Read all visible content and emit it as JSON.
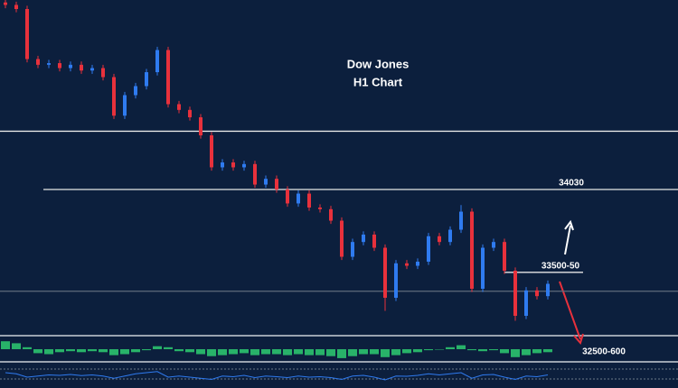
{
  "chart_data": {
    "type": "candlestick",
    "title": "Dow Jones",
    "subtitle": "H1 Chart",
    "ylim": [
      33150,
      35185
    ],
    "open": [
      35170,
      35155,
      35130,
      34825,
      34790,
      34800,
      34770,
      34790,
      34755,
      34770,
      34715,
      34480,
      34605,
      34660,
      34745,
      34880,
      34550,
      34515,
      34470,
      34360,
      34165,
      34195,
      34165,
      34185,
      34060,
      34095,
      34030,
      33945,
      34005,
      33920,
      33910,
      33840,
      33620,
      33710,
      33755,
      33675,
      33370,
      33580,
      33565,
      33590,
      33745,
      33710,
      33785,
      33895,
      33425,
      33675,
      33710,
      33535,
      33260,
      33415,
      33380
    ],
    "high": [
      35190,
      35175,
      35150,
      34845,
      34820,
      34820,
      34810,
      34810,
      34790,
      34790,
      34735,
      34625,
      34680,
      34765,
      34900,
      34900,
      34570,
      34535,
      34490,
      34380,
      34215,
      34215,
      34205,
      34205,
      34115,
      34115,
      34050,
      34025,
      34025,
      33940,
      33930,
      33860,
      33730,
      33775,
      33775,
      33695,
      33600,
      33600,
      33610,
      33765,
      33765,
      33805,
      33935,
      33915,
      33695,
      33730,
      33730,
      33555,
      33435,
      33435,
      33475
    ],
    "low": [
      35135,
      35110,
      34805,
      34770,
      34770,
      34750,
      34750,
      34735,
      34735,
      34695,
      34460,
      34460,
      34585,
      34640,
      34725,
      34530,
      34495,
      34450,
      34340,
      34145,
      34145,
      34145,
      34145,
      34040,
      34040,
      34010,
      33925,
      33925,
      33900,
      33890,
      33820,
      33600,
      33600,
      33690,
      33655,
      33290,
      33350,
      33545,
      33545,
      33570,
      33690,
      33690,
      33765,
      33405,
      33405,
      33655,
      33515,
      33230,
      33240,
      33360,
      33360
    ],
    "close": [
      35155,
      35130,
      34825,
      34790,
      34800,
      34770,
      34790,
      34755,
      34770,
      34715,
      34480,
      34605,
      34660,
      34745,
      34880,
      34550,
      34515,
      34470,
      34360,
      34165,
      34195,
      34165,
      34185,
      34060,
      34095,
      34030,
      33945,
      34005,
      33920,
      33910,
      33840,
      33620,
      33710,
      33755,
      33675,
      33370,
      33580,
      33565,
      33590,
      33745,
      33710,
      33785,
      33895,
      33425,
      33675,
      33710,
      33535,
      33260,
      33415,
      33380,
      33455
    ],
    "up_color": "#2f7bf0",
    "down_color": "#e8313c",
    "levels": [
      {
        "value": 34385
      },
      {
        "value": 34030,
        "label": "34030"
      },
      {
        "value": 33525,
        "label": "33500-50"
      },
      {
        "value": 33410
      }
    ],
    "annotation": "32500-600",
    "annotation_color": "#1e90ff",
    "macd": [
      8,
      6,
      2,
      -4,
      -5,
      -3,
      -2,
      -3,
      -2,
      -3,
      -6,
      -5,
      -3,
      -1,
      3,
      2,
      -2,
      -3,
      -5,
      -7,
      -6,
      -5,
      -4,
      -6,
      -5,
      -5,
      -6,
      -5,
      -6,
      -6,
      -7,
      -9,
      -7,
      -5,
      -5,
      -8,
      -6,
      -4,
      -3,
      -1,
      0,
      2,
      4,
      -1,
      -2,
      -1,
      -4,
      -8,
      -6,
      -4,
      -3
    ],
    "macd_lim": [
      -10,
      10
    ],
    "macd_color": "#2ecc71",
    "oscillator": [
      60,
      55,
      40,
      45,
      50,
      48,
      52,
      47,
      50,
      45,
      35,
      45,
      55,
      60,
      65,
      40,
      45,
      40,
      35,
      30,
      45,
      42,
      48,
      38,
      45,
      42,
      38,
      45,
      40,
      42,
      38,
      30,
      45,
      48,
      40,
      28,
      45,
      44,
      48,
      55,
      50,
      55,
      60,
      35,
      50,
      52,
      40,
      30,
      45,
      42,
      50
    ],
    "oscillator_lim": [
      0,
      100
    ],
    "oscillator_color": "#2f7bf0"
  }
}
